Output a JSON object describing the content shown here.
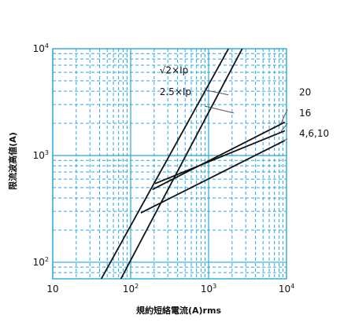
{
  "chart_data": {
    "type": "line",
    "xscale": "log",
    "yscale": "log",
    "xlim": [
      10,
      10000
    ],
    "ylim": [
      70,
      10000
    ],
    "xlabel": "規約短絡電流(A)rms",
    "ylabel": "限流波高値(A)",
    "grid": true,
    "grid_color": "#29a8e0",
    "line_color": "#111111",
    "x_ticks": [
      {
        "value": 10,
        "base": "10",
        "exp": ""
      },
      {
        "value": 100,
        "base": "10",
        "exp": "2"
      },
      {
        "value": 1000,
        "base": "10",
        "exp": "3"
      },
      {
        "value": 10000,
        "base": "10",
        "exp": "4"
      }
    ],
    "y_ticks": [
      {
        "value": 100,
        "base": "10",
        "exp": "2"
      },
      {
        "value": 1000,
        "base": "10",
        "exp": "3"
      },
      {
        "value": 10000,
        "base": "10",
        "exp": "4"
      }
    ],
    "series": [
      {
        "name": "√2×Ip",
        "points": [
          [
            42,
            70
          ],
          [
            1800,
            10000
          ]
        ]
      },
      {
        "name": "2.5×Ip",
        "points": [
          [
            75,
            70
          ],
          [
            2700,
            10000
          ]
        ]
      },
      {
        "name": "20",
        "points": [
          [
            190,
            480
          ],
          [
            9500,
            2050
          ]
        ]
      },
      {
        "name": "16",
        "points": [
          [
            205,
            545
          ],
          [
            9500,
            1700
          ]
        ]
      },
      {
        "name": "4,6,10",
        "points": [
          [
            135,
            290
          ],
          [
            9500,
            1380
          ]
        ]
      }
    ],
    "annotations": [
      {
        "text": "√2×Ip",
        "leader_from": [
          900,
          4100
        ],
        "leader_to": [
          1800,
          3700
        ],
        "label_at": [
          235,
          6300
        ]
      },
      {
        "text": "2.5×Ip",
        "leader_from": [
          900,
          2900
        ],
        "leader_to": [
          2100,
          2500
        ],
        "label_at": [
          235,
          3950
        ]
      },
      {
        "text": "20",
        "leader_from": [
          10300,
          2700
        ],
        "leader_to": [
          8500,
          2000
        ],
        "label_at": [
          14500,
          3900
        ]
      },
      {
        "text": "16",
        "leader_from": [
          10300,
          2000
        ],
        "leader_to": [
          8500,
          1680
        ],
        "label_at": [
          14500,
          2500
        ]
      },
      {
        "text": "4,6,10",
        "leader_from": [
          10300,
          1430
        ],
        "leader_to": [
          8500,
          1350
        ],
        "label_at": [
          14500,
          1610
        ]
      }
    ]
  }
}
